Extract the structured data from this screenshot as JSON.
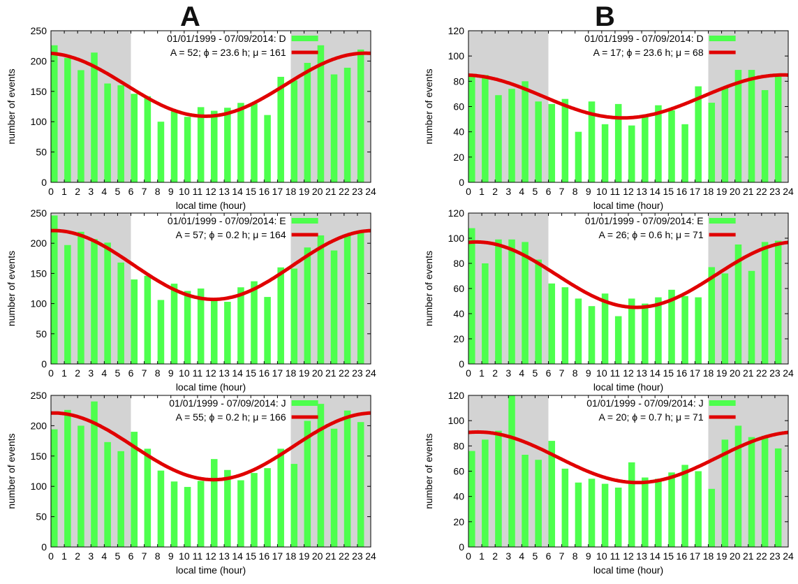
{
  "columns": [
    "A",
    "B"
  ],
  "colors": {
    "bar": "#4dff4d",
    "fit": "#e00000",
    "night": "#d3d3d3",
    "axis": "#000000"
  },
  "chart_data": [
    {
      "type": "bar",
      "panel": "A-D",
      "column": "A",
      "xlabel": "local time (hour)",
      "ylabel": "number of events",
      "xlim": [
        0,
        24
      ],
      "ylim": [
        0,
        250
      ],
      "yticks": [
        0,
        50,
        100,
        150,
        200,
        250
      ],
      "night_shading": [
        [
          0,
          6
        ],
        [
          18,
          24
        ]
      ],
      "legend": {
        "placement": "top-center",
        "bar_label": "01/01/1999 - 07/09/2014: D",
        "fit_label": "A = 52; ϕ = 23.6 h; μ  = 161"
      },
      "fit": {
        "A": 52,
        "phi": 23.6,
        "mu": 161
      },
      "x": [
        0,
        1,
        2,
        3,
        4,
        5,
        6,
        7,
        8,
        9,
        10,
        11,
        12,
        13,
        14,
        15,
        16,
        17,
        18,
        19,
        20,
        21,
        22,
        23
      ],
      "values": [
        226,
        205,
        185,
        214,
        163,
        160,
        146,
        142,
        100,
        117,
        108,
        124,
        118,
        123,
        131,
        130,
        111,
        174,
        168,
        197,
        226,
        178,
        189,
        219
      ]
    },
    {
      "type": "bar",
      "panel": "B-D",
      "column": "B",
      "xlabel": "local time (hour)",
      "ylabel": "number of events",
      "xlim": [
        0,
        24
      ],
      "ylim": [
        0,
        120
      ],
      "yticks": [
        0,
        20,
        40,
        60,
        80,
        100,
        120
      ],
      "night_shading": [
        [
          0,
          6
        ],
        [
          18,
          24
        ]
      ],
      "legend": {
        "placement": "top-center",
        "bar_label": "01/01/1999 - 07/09/2014: D",
        "fit_label": "A = 17; ϕ = 23.6 h; μ  =  68"
      },
      "fit": {
        "A": 17,
        "phi": 23.6,
        "mu": 68
      },
      "x": [
        0,
        1,
        2,
        3,
        4,
        5,
        6,
        7,
        8,
        9,
        10,
        11,
        12,
        13,
        14,
        15,
        16,
        17,
        18,
        19,
        20,
        21,
        22,
        23
      ],
      "values": [
        86,
        85,
        69,
        74,
        80,
        64,
        62,
        66,
        40,
        64,
        46,
        62,
        45,
        52,
        61,
        57,
        46,
        76,
        63,
        75,
        89,
        89,
        73,
        85
      ]
    },
    {
      "type": "bar",
      "panel": "A-E",
      "column": "A",
      "xlabel": "local time (hour)",
      "ylabel": "number of events",
      "xlim": [
        0,
        24
      ],
      "ylim": [
        0,
        250
      ],
      "yticks": [
        0,
        50,
        100,
        150,
        200,
        250
      ],
      "night_shading": [
        [
          0,
          6
        ],
        [
          18,
          24
        ]
      ],
      "legend": {
        "placement": "top-center",
        "bar_label": "01/01/1999 - 07/09/2014: E",
        "fit_label": "A = 57; ϕ = 0.2 h; μ  = 164"
      },
      "fit": {
        "A": 57,
        "phi": 0.2,
        "mu": 164
      },
      "x": [
        0,
        1,
        2,
        3,
        4,
        5,
        6,
        7,
        8,
        9,
        10,
        11,
        12,
        13,
        14,
        15,
        16,
        17,
        18,
        19,
        20,
        21,
        22,
        23
      ],
      "values": [
        246,
        197,
        219,
        207,
        201,
        168,
        140,
        146,
        106,
        133,
        121,
        125,
        108,
        103,
        127,
        137,
        111,
        160,
        158,
        193,
        213,
        188,
        213,
        217
      ]
    },
    {
      "type": "bar",
      "panel": "B-E",
      "column": "B",
      "xlabel": "local time (hour)",
      "ylabel": "number of events",
      "xlim": [
        0,
        24
      ],
      "ylim": [
        0,
        120
      ],
      "yticks": [
        0,
        20,
        40,
        60,
        80,
        100,
        120
      ],
      "night_shading": [
        [
          0,
          6
        ],
        [
          18,
          24
        ]
      ],
      "legend": {
        "placement": "top-center",
        "bar_label": "01/01/1999 - 07/09/2014: E",
        "fit_label": "A = 26; ϕ = 0.6 h; μ  = 71"
      },
      "fit": {
        "A": 26,
        "phi": 0.6,
        "mu": 71
      },
      "x": [
        0,
        1,
        2,
        3,
        4,
        5,
        6,
        7,
        8,
        9,
        10,
        11,
        12,
        13,
        14,
        15,
        16,
        17,
        18,
        19,
        20,
        21,
        22,
        23
      ],
      "values": [
        108,
        80,
        99,
        99,
        97,
        83,
        64,
        61,
        52,
        46,
        56,
        38,
        52,
        48,
        53,
        59,
        54,
        53,
        77,
        72,
        95,
        74,
        97,
        98
      ]
    },
    {
      "type": "bar",
      "panel": "A-J",
      "column": "A",
      "xlabel": "local time (hour)",
      "ylabel": "number of events",
      "xlim": [
        0,
        24
      ],
      "ylim": [
        0,
        250
      ],
      "yticks": [
        0,
        50,
        100,
        150,
        200,
        250
      ],
      "night_shading": [
        [
          0,
          6
        ],
        [
          18,
          24
        ]
      ],
      "legend": {
        "placement": "top-center",
        "bar_label": "01/01/1999 - 07/09/2014: J",
        "fit_label": "A = 55; ϕ = 0.2 h; μ  = 166"
      },
      "fit": {
        "A": 55,
        "phi": 0.2,
        "mu": 166
      },
      "x": [
        0,
        1,
        2,
        3,
        4,
        5,
        6,
        7,
        8,
        9,
        10,
        11,
        12,
        13,
        14,
        15,
        16,
        17,
        18,
        19,
        20,
        21,
        22,
        23
      ],
      "values": [
        194,
        226,
        200,
        240,
        173,
        158,
        190,
        162,
        126,
        108,
        99,
        109,
        145,
        127,
        110,
        122,
        130,
        162,
        137,
        208,
        236,
        195,
        225,
        206
      ]
    },
    {
      "type": "bar",
      "panel": "B-J",
      "column": "B",
      "xlabel": "local time (hour)",
      "ylabel": "number of events",
      "xlim": [
        0,
        24
      ],
      "ylim": [
        0,
        120
      ],
      "yticks": [
        0,
        20,
        40,
        60,
        80,
        100,
        120
      ],
      "night_shading": [
        [
          0,
          6
        ],
        [
          18,
          24
        ]
      ],
      "legend": {
        "placement": "top-center",
        "bar_label": "01/01/1999 - 07/09/2014: J",
        "fit_label": "A = 20; ϕ = 0.7 h; μ  = 71"
      },
      "fit": {
        "A": 20,
        "phi": 0.7,
        "mu": 71
      },
      "x": [
        0,
        1,
        2,
        3,
        4,
        5,
        6,
        7,
        8,
        9,
        10,
        11,
        12,
        13,
        14,
        15,
        16,
        17,
        18,
        19,
        20,
        21,
        22,
        23
      ],
      "values": [
        76,
        85,
        92,
        120,
        73,
        69,
        84,
        62,
        51,
        54,
        50,
        47,
        67,
        55,
        54,
        59,
        65,
        60,
        46,
        85,
        96,
        87,
        88,
        78
      ]
    }
  ]
}
